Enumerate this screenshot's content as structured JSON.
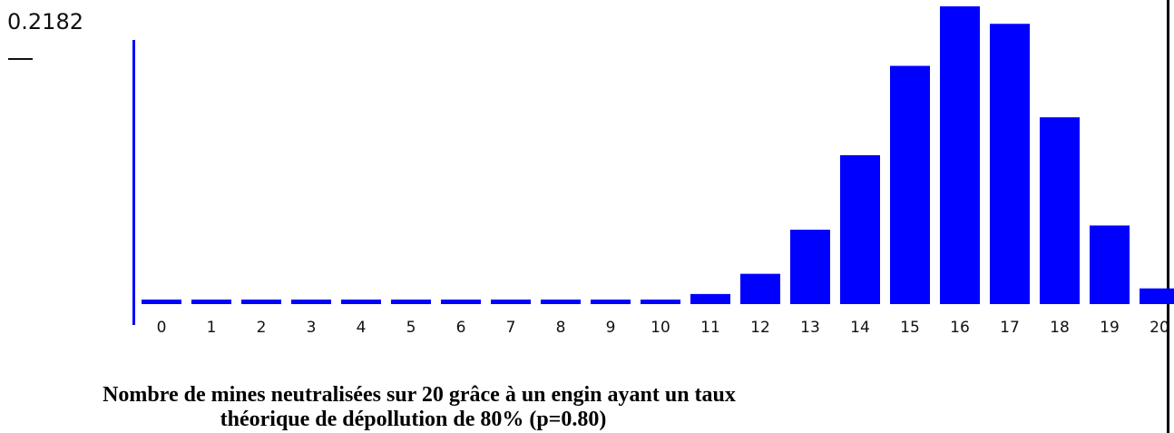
{
  "y_max_label": "0.2182",
  "caption": {
    "line1": "Nombre de mines neutralisées sur 20 grâce à un engin ayant un taux",
    "line2": "théorique de dépollution de 80% (p=0.80)"
  },
  "colors": {
    "bar": "#0000ff",
    "axis": "#0000ff",
    "text": "#111111"
  },
  "chart_data": {
    "type": "bar",
    "title": "Nombre de mines neutralisées sur 20 grâce à un engin ayant un taux théorique de dépollution de 80% (p=0.80)",
    "categories": [
      "0",
      "1",
      "2",
      "3",
      "4",
      "5",
      "6",
      "7",
      "8",
      "9",
      "10",
      "11",
      "12",
      "13",
      "14",
      "15",
      "16",
      "17",
      "18",
      "19",
      "20"
    ],
    "values": [
      0,
      0,
      0,
      0,
      0,
      0,
      0,
      0,
      0,
      0.0002,
      0.002,
      0.0074,
      0.0222,
      0.0545,
      0.1091,
      0.1746,
      0.2182,
      0.2054,
      0.1369,
      0.0576,
      0.0115
    ],
    "ylim": [
      0,
      0.2182
    ],
    "y_tick_labels": [
      "0.2182"
    ],
    "grid": false,
    "legend": "none"
  }
}
